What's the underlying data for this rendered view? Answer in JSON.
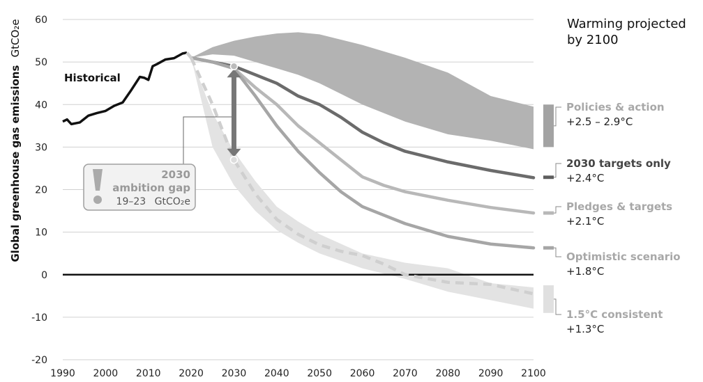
{
  "chart_data": {
    "type": "line",
    "ylabel": "Global greenhouse gas emissions",
    "yunit": "GtCO₂e",
    "xlim": [
      1990,
      2100
    ],
    "ylim": [
      -20,
      60
    ],
    "x_ticks": [
      "1990",
      "2000",
      "2010",
      "2020",
      "2030",
      "2040",
      "2050",
      "2060",
      "2070",
      "2080",
      "2090",
      "2100"
    ],
    "y_ticks": [
      "60",
      "50",
      "40",
      "30",
      "20",
      "10",
      "0",
      "-10",
      "-20"
    ],
    "grid": true,
    "legend_title": "Warming projected by 2100",
    "historical": {
      "name": "Historical",
      "x": [
        1990,
        1991,
        1992,
        1994,
        1996,
        1998,
        2000,
        2002,
        2004,
        2006,
        2008,
        2009,
        2010,
        2011,
        2012,
        2014,
        2016,
        2018,
        2019
      ],
      "y": [
        36.0,
        36.5,
        35.4,
        35.8,
        37.4,
        38.0,
        38.5,
        39.7,
        40.5,
        43.4,
        46.5,
        46.3,
        45.8,
        49.0,
        49.5,
        50.6,
        50.9,
        52.0,
        52.2
      ]
    },
    "bands": [
      {
        "name": "Policies & action",
        "color": "#b3b3b3",
        "x": [
          2020,
          2025,
          2030,
          2035,
          2040,
          2045,
          2050,
          2060,
          2070,
          2080,
          2090,
          2100
        ],
        "upper": [
          51,
          53.5,
          55,
          56,
          56.7,
          57,
          56.5,
          54,
          51,
          47.5,
          42,
          39.5
        ],
        "lower": [
          51,
          51.8,
          51.5,
          50,
          48.5,
          47,
          45,
          40,
          36,
          33,
          31.5,
          29.5
        ]
      },
      {
        "name": "1.5°C consistent",
        "color": "#e3e3e3",
        "x": [
          2020,
          2025,
          2030,
          2035,
          2040,
          2045,
          2050,
          2060,
          2070,
          2080,
          2090,
          2100
        ],
        "upper": [
          51,
          38,
          29,
          22,
          16,
          12.5,
          9.5,
          5,
          2.8,
          1.5,
          -2,
          -3
        ],
        "lower": [
          51,
          30,
          21,
          15,
          10.5,
          7.5,
          5,
          1.5,
          -1,
          -4,
          -6,
          -8
        ]
      }
    ],
    "series": [
      {
        "name": "2030 targets only",
        "color": "#6b6b6b",
        "x": [
          2020,
          2025,
          2030,
          2035,
          2040,
          2045,
          2050,
          2055,
          2060,
          2065,
          2070,
          2080,
          2090,
          2100
        ],
        "y": [
          51,
          50,
          49,
          47,
          45,
          42,
          40,
          37,
          33.5,
          31,
          29,
          26.5,
          24.5,
          22.8
        ]
      },
      {
        "name": "Pledges & targets",
        "color": "#b8b8b8",
        "x": [
          2020,
          2025,
          2030,
          2035,
          2040,
          2045,
          2050,
          2055,
          2060,
          2065,
          2070,
          2080,
          2090,
          2100
        ],
        "y": [
          51,
          50,
          48.5,
          44,
          40,
          35,
          31,
          27,
          23,
          21,
          19.5,
          17.5,
          15.8,
          14.5
        ]
      },
      {
        "name": "Optimistic scenario",
        "color": "#a6a6a6",
        "x": [
          2020,
          2025,
          2030,
          2035,
          2040,
          2045,
          2050,
          2055,
          2060,
          2065,
          2070,
          2080,
          2090,
          2100
        ],
        "y": [
          51,
          50,
          48.5,
          42,
          35,
          29,
          24,
          19.5,
          16,
          14,
          12,
          9,
          7.2,
          6.3
        ]
      },
      {
        "name": "1.5°C consistent",
        "color": "#cfcfcf",
        "dashed": true,
        "x": [
          2020,
          2025,
          2030,
          2035,
          2040,
          2045,
          2050,
          2055,
          2060,
          2065,
          2070,
          2080,
          2090,
          2100
        ],
        "y": [
          51,
          40,
          27,
          19,
          13,
          9.5,
          7,
          5.5,
          4.5,
          2.5,
          0,
          -1.8,
          -2.3,
          -4.5
        ]
      }
    ],
    "legend": [
      {
        "name": "Policies & action",
        "warming": "+2.5 – 2.9°C",
        "color": "#a3a3a3",
        "range": [
          30,
          40
        ]
      },
      {
        "name": "2030 targets only",
        "warming": "+2.4°C",
        "color": "#5e5e5e",
        "range": [
          22.5,
          23.3
        ]
      },
      {
        "name": "Pledges & targets",
        "warming": "+2.1°C",
        "color": "#b8b8b8",
        "range": [
          14.1,
          14.9
        ]
      },
      {
        "name": "Optimistic scenario",
        "warming": "+1.8°C",
        "color": "#a6a6a6",
        "range": [
          5.9,
          6.7
        ]
      },
      {
        "name": "1.5°C consistent",
        "warming": "+1.3°C",
        "color": "#e0e0e0",
        "range": [
          -9,
          -2.5
        ]
      }
    ],
    "annotation": {
      "year_label": "2030",
      "title": "ambition gap",
      "detail": "19–23",
      "unit": "GtCO₂e",
      "range": [
        27,
        49
      ],
      "at_x": 2030,
      "icon": "exclamation-icon"
    }
  }
}
